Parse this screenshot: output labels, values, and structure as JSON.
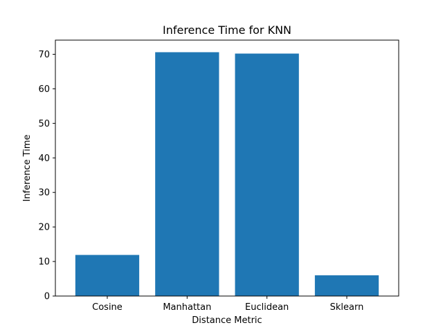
{
  "chart_data": {
    "type": "bar",
    "title": "Inference Time for KNN",
    "xlabel": "Distance Metric",
    "ylabel": "Inference Time",
    "categories": [
      "Cosine",
      "Manhattan",
      "Euclidean",
      "Sklearn"
    ],
    "values": [
      11.9,
      70.6,
      70.2,
      6.0
    ],
    "ylim": [
      0,
      74.1
    ],
    "yticks": [
      0,
      10,
      20,
      30,
      40,
      50,
      60,
      70
    ],
    "grid": false,
    "bar_color": "#1f77b4"
  }
}
